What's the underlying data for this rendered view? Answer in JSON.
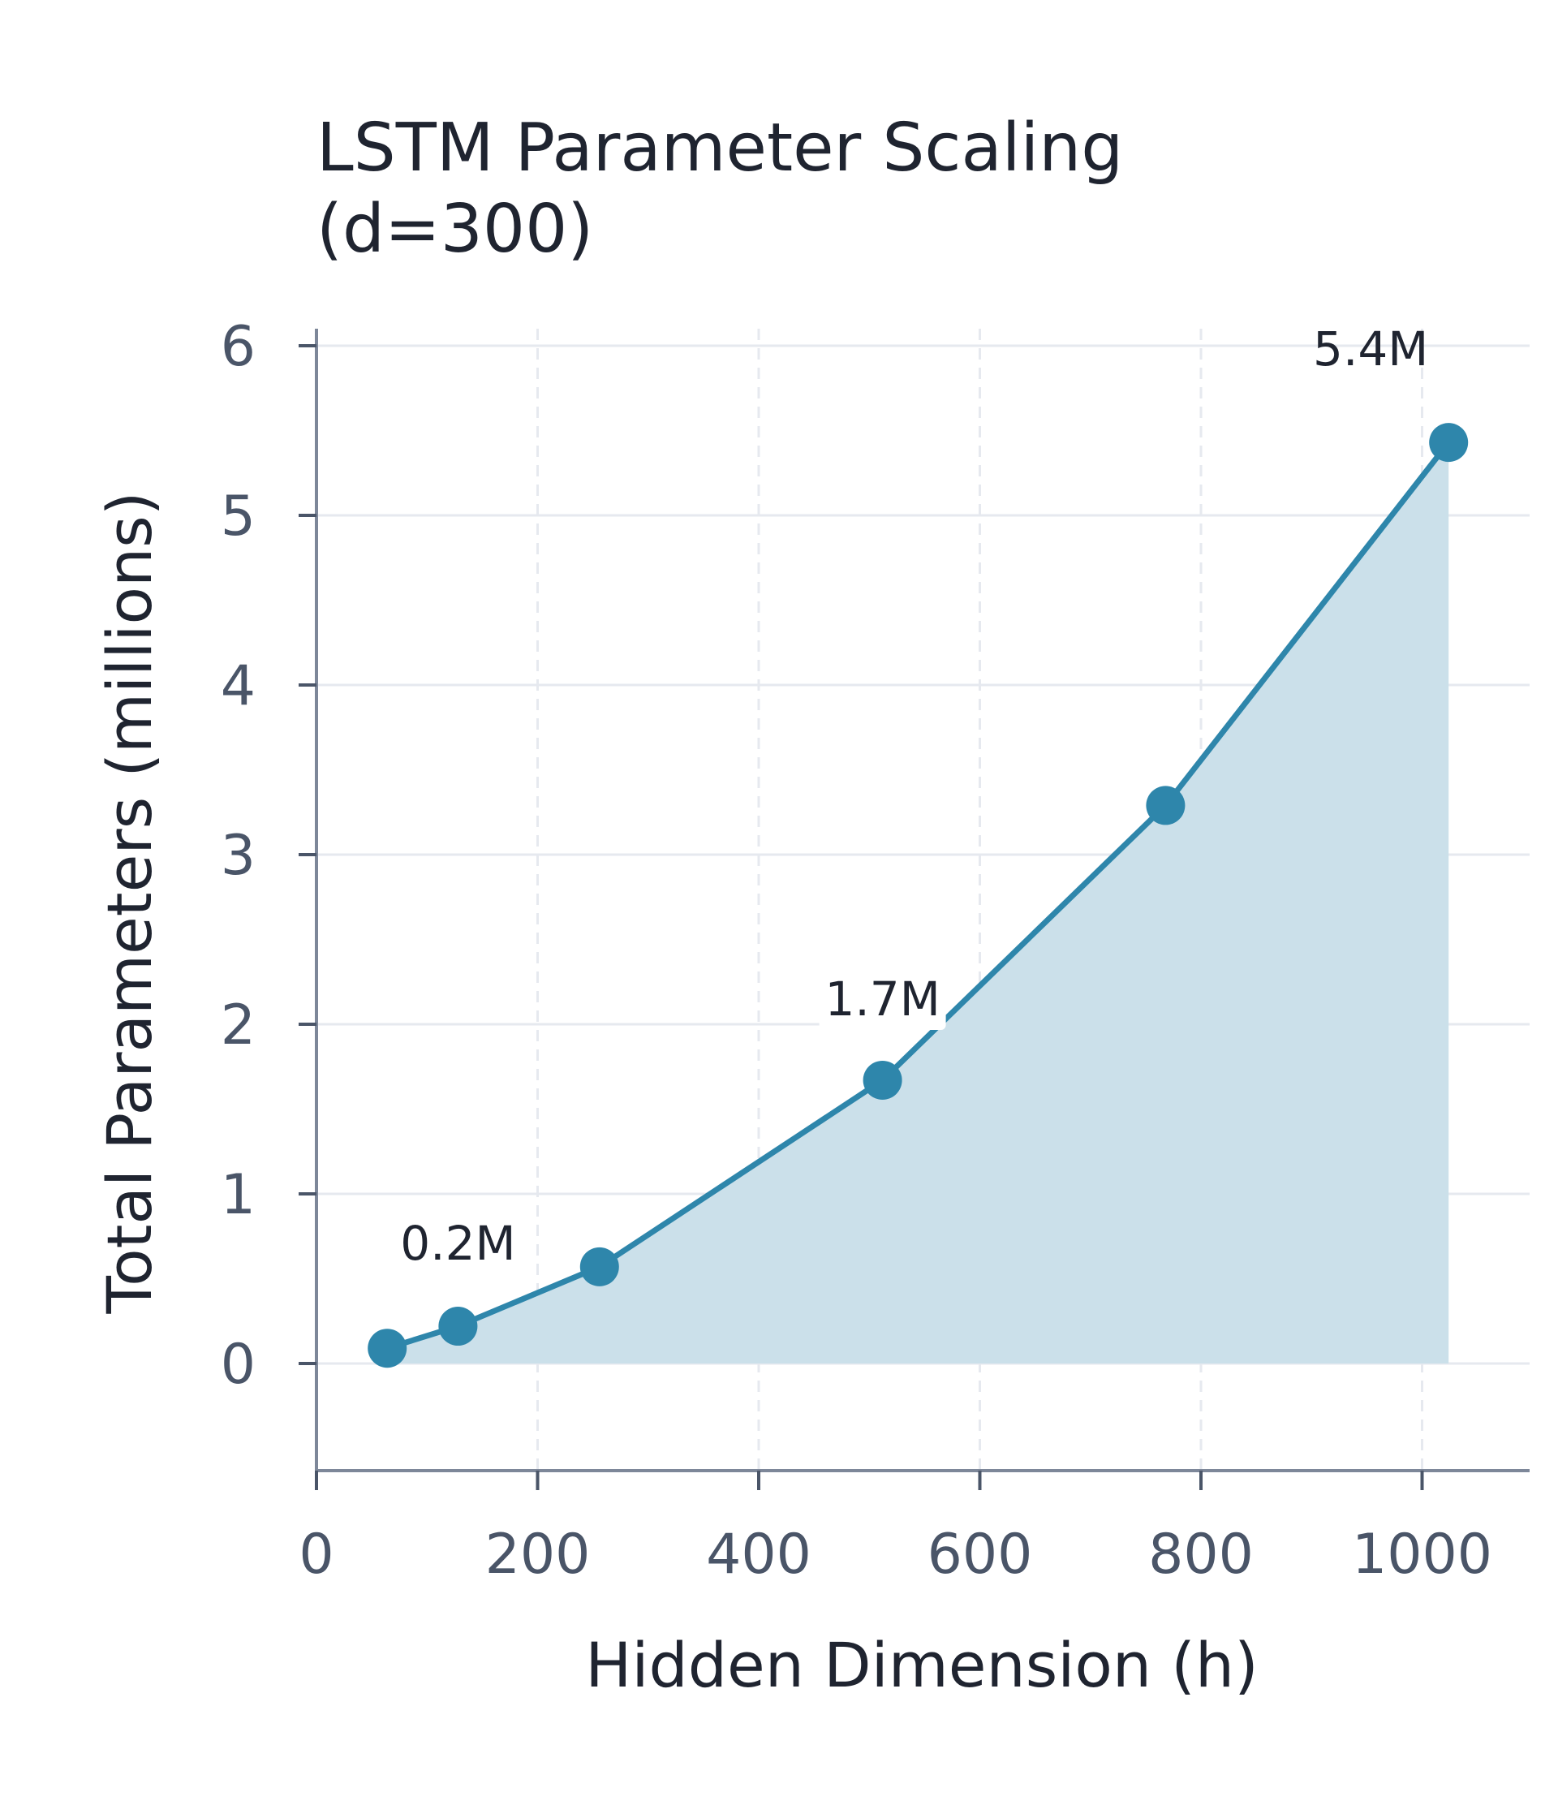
{
  "chart_data": {
    "type": "line",
    "title_lines": [
      "LSTM Parameter Scaling",
      "(d=300)"
    ],
    "xlabel": "Hidden Dimension (h)",
    "ylabel": "Total Parameters (millions)",
    "xlim": [
      0,
      1100
    ],
    "ylim": [
      -0.65,
      6.1
    ],
    "xticks": [
      0,
      200,
      400,
      600,
      800,
      1000
    ],
    "xtick_labels": [
      "0",
      "200",
      "400",
      "600",
      "800",
      "1000"
    ],
    "yticks": [
      0,
      1,
      2,
      3,
      4,
      5,
      6
    ],
    "ytick_labels": [
      "0",
      "1",
      "2",
      "3",
      "4",
      "5",
      "6"
    ],
    "grid": true,
    "fill_under": true,
    "series": [
      {
        "x": [
          64,
          128,
          256,
          512,
          768,
          1024
        ],
        "y": [
          0.09,
          0.22,
          0.57,
          1.67,
          3.29,
          5.43
        ]
      }
    ],
    "annotations": [
      {
        "x": 128,
        "y": 0.22,
        "text": "0.2M"
      },
      {
        "x": 512,
        "y": 1.67,
        "text": "1.7M"
      },
      {
        "x": 1024,
        "y": 5.43,
        "text": "5.4M"
      }
    ],
    "colors": {
      "line": "#2e86ab",
      "fill": "#cbe0ea",
      "grid": "#e6e9ef",
      "axis": "#7d8799"
    }
  }
}
